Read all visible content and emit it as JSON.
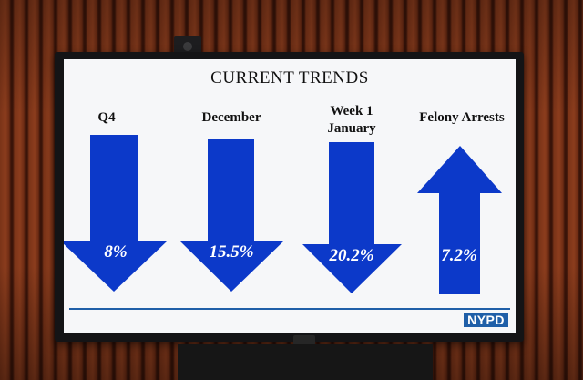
{
  "slide": {
    "title": "CURRENT TRENDS",
    "logo_text": "NYPD",
    "colors": {
      "arrow": "#0c39c9",
      "rule": "#1f5fa8",
      "screen": "#f6f7f9"
    },
    "trends": [
      {
        "label": "Q4",
        "value": "8%",
        "direction": "down"
      },
      {
        "label": "December",
        "value": "15.5%",
        "direction": "down"
      },
      {
        "label": "Week 1 January",
        "value": "20.2%",
        "direction": "down"
      },
      {
        "label": "Felony Arrests",
        "value": "7.2%",
        "direction": "up"
      }
    ]
  }
}
